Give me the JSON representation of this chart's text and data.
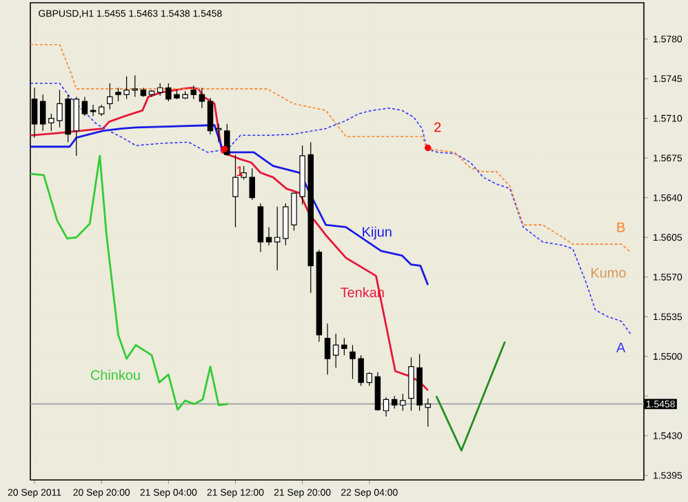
{
  "chart_data": {
    "type": "candlestick",
    "title": "GBPUSD,H1  1.5455 1.5463 1.5438 1.5458",
    "xlim": [
      "2011-09-20T11:30",
      "2011-09-23T12:48"
    ],
    "ylim": [
      1.5391,
      1.5812
    ],
    "xticks": [
      {
        "value": "2011-09-20T12:00",
        "label": "20 Sep 2011"
      },
      {
        "value": "2011-09-20T20:00",
        "label": "20 Sep 20:00"
      },
      {
        "value": "2011-09-21T04:00",
        "label": "21 Sep 04:00"
      },
      {
        "value": "2011-09-21T12:00",
        "label": "21 Sep 12:00"
      },
      {
        "value": "2011-09-21T20:00",
        "label": "21 Sep 20:00"
      },
      {
        "value": "2011-09-22T04:00",
        "label": "22 Sep 04:00"
      }
    ],
    "yticks": [
      {
        "value": 1.578,
        "label": "1.5780"
      },
      {
        "value": 1.5745,
        "label": "1.5745"
      },
      {
        "value": 1.571,
        "label": "1.5710"
      },
      {
        "value": 1.5675,
        "label": "1.5675"
      },
      {
        "value": 1.564,
        "label": "1.5640"
      },
      {
        "value": 1.5605,
        "label": "1.5605"
      },
      {
        "value": 1.557,
        "label": "1.5570"
      },
      {
        "value": 1.5535,
        "label": "1.5535"
      },
      {
        "value": 1.55,
        "label": "1.5500"
      },
      {
        "value": 1.5465,
        "label": null
      },
      {
        "value": 1.543,
        "label": "1.5430"
      },
      {
        "value": 1.5395,
        "label": "1.5395"
      }
    ],
    "grid": true,
    "ref_lines": [
      {
        "axis": "y",
        "value": 1.5458,
        "label": "1.5458",
        "color": "#a8a8a8"
      }
    ],
    "series": [
      {
        "color": "#000000",
        "x": [
          "2011-09-20T12:00",
          "2011-09-20T13:00",
          "2011-09-20T14:00",
          "2011-09-20T15:00",
          "2011-09-20T16:00",
          "2011-09-20T17:00",
          "2011-09-20T18:00",
          "2011-09-20T19:00",
          "2011-09-20T20:00",
          "2011-09-20T21:00",
          "2011-09-20T22:00",
          "2011-09-20T23:00",
          "2011-09-21T00:00",
          "2011-09-21T01:00",
          "2011-09-21T02:00",
          "2011-09-21T03:00",
          "2011-09-21T04:00",
          "2011-09-21T05:00",
          "2011-09-21T06:00",
          "2011-09-21T07:00",
          "2011-09-21T08:00",
          "2011-09-21T09:00",
          "2011-09-21T10:00",
          "2011-09-21T11:00",
          "2011-09-21T12:00",
          "2011-09-21T13:00",
          "2011-09-21T14:00",
          "2011-09-21T15:00",
          "2011-09-21T16:00",
          "2011-09-21T17:00",
          "2011-09-21T18:00",
          "2011-09-21T19:00",
          "2011-09-21T20:00",
          "2011-09-21T21:00",
          "2011-09-21T22:00",
          "2011-09-21T23:00",
          "2011-09-22T00:00",
          "2011-09-22T01:00",
          "2011-09-22T02:00",
          "2011-09-22T03:00",
          "2011-09-22T04:00",
          "2011-09-22T05:00",
          "2011-09-22T06:00",
          "2011-09-22T07:00",
          "2011-09-22T08:00",
          "2011-09-22T09:00",
          "2011-09-22T10:00",
          "2011-09-22T11:00"
        ],
        "ohlc": [
          [
            1.5727,
            1.5737,
            1.5693,
            1.5705
          ],
          [
            1.5725,
            1.5731,
            1.5699,
            1.5705
          ],
          [
            1.5706,
            1.5714,
            1.5699,
            1.571
          ],
          [
            1.5708,
            1.5735,
            1.5702,
            1.5723
          ],
          [
            1.5727,
            1.5731,
            1.5689,
            1.5696
          ],
          [
            1.5699,
            1.5729,
            1.5677,
            1.5727
          ],
          [
            1.5725,
            1.5729,
            1.5712,
            1.5714
          ],
          [
            1.5717,
            1.5722,
            1.5712,
            1.5716
          ],
          [
            1.5714,
            1.5722,
            1.5712,
            1.572
          ],
          [
            1.5723,
            1.5741,
            1.5718,
            1.5729
          ],
          [
            1.5733,
            1.5737,
            1.5725,
            1.5731
          ],
          [
            1.5731,
            1.5747,
            1.5727,
            1.5735
          ],
          [
            1.5735,
            1.5748,
            1.5729,
            1.5736
          ],
          [
            1.5735,
            1.5737,
            1.5729,
            1.573
          ],
          [
            1.5731,
            1.5735,
            1.5729,
            1.5734
          ],
          [
            1.5733,
            1.5741,
            1.573,
            1.5737
          ],
          [
            1.5737,
            1.5741,
            1.5725,
            1.5727
          ],
          [
            1.5731,
            1.5735,
            1.5727,
            1.5728
          ],
          [
            1.5728,
            1.5734,
            1.5727,
            1.5731
          ],
          [
            1.5735,
            1.5739,
            1.5727,
            1.5731
          ],
          [
            1.5731,
            1.5737,
            1.5719,
            1.5725
          ],
          [
            1.5725,
            1.5728,
            1.5696,
            1.5699
          ],
          [
            1.57,
            1.5705,
            1.5689,
            1.5701
          ],
          [
            1.5699,
            1.5705,
            1.5677,
            1.5678
          ],
          [
            1.5641,
            1.5678,
            1.5614,
            1.5658
          ],
          [
            1.5658,
            1.5668,
            1.5656,
            1.5662
          ],
          [
            1.5658,
            1.5666,
            1.5638,
            1.564
          ],
          [
            1.5632,
            1.5635,
            1.5592,
            1.5601
          ],
          [
            1.5605,
            1.5614,
            1.5598,
            1.5601
          ],
          [
            1.5601,
            1.5632,
            1.5576,
            1.5605
          ],
          [
            1.5604,
            1.5635,
            1.5598,
            1.5632
          ],
          [
            1.5616,
            1.5644,
            1.5611,
            1.5644
          ],
          [
            1.5641,
            1.5686,
            1.5634,
            1.5677
          ],
          [
            1.5678,
            1.5689,
            1.5556,
            1.558
          ],
          [
            1.5592,
            1.5594,
            1.5513,
            1.5519
          ],
          [
            1.5516,
            1.5529,
            1.5484,
            1.5498
          ],
          [
            1.5501,
            1.552,
            1.549,
            1.551
          ],
          [
            1.551,
            1.5516,
            1.5501,
            1.5507
          ],
          [
            1.5504,
            1.551,
            1.548,
            1.5498
          ],
          [
            1.5498,
            1.5501,
            1.5474,
            1.5477
          ],
          [
            1.5477,
            1.5486,
            1.5474,
            1.5485
          ],
          [
            1.5482,
            1.5486,
            1.5452,
            1.5453
          ],
          [
            1.5452,
            1.5464,
            1.5447,
            1.5462
          ],
          [
            1.5462,
            1.5465,
            1.5454,
            1.5457
          ],
          [
            1.5457,
            1.5467,
            1.5452,
            1.5461
          ],
          [
            1.5463,
            1.5499,
            1.5452,
            1.5491
          ],
          [
            1.549,
            1.5502,
            1.5452,
            1.5457
          ],
          [
            1.5455,
            1.5463,
            1.5438,
            1.5458
          ]
        ]
      },
      {
        "type": "line",
        "name": "Tenkan",
        "color": "#e8173a",
        "x": [
          "2011-09-20T11:30",
          "2011-09-20T14:42",
          "2011-09-20T20:12",
          "2011-09-20T20:54",
          "2011-09-20T22:48",
          "2011-09-21T00:54",
          "2011-09-21T01:36",
          "2011-09-21T03:12",
          "2011-09-21T05:36",
          "2011-09-21T06:42",
          "2011-09-21T07:36",
          "2011-09-21T08:12",
          "2011-09-21T09:30",
          "2011-09-21T10:24",
          "2011-09-21T12:36",
          "2011-09-21T13:54",
          "2011-09-21T15:00",
          "2011-09-21T16:30",
          "2011-09-21T18:06",
          "2011-09-21T19:42",
          "2011-09-21T20:48",
          "2011-09-21T22:48",
          "2011-09-22T01:12",
          "2011-09-22T04:48",
          "2011-09-22T06:12",
          "2011-09-22T07:06",
          "2011-09-22T09:00",
          "2011-09-22T10:06",
          "2011-09-22T11:00"
        ],
        "values": [
          1.5695,
          1.5697,
          1.5701,
          1.5707,
          1.5712,
          1.5717,
          1.5729,
          1.5733,
          1.5736,
          1.5737,
          1.5736,
          1.5729,
          1.5723,
          1.568,
          1.5674,
          1.5671,
          1.5662,
          1.5658,
          1.5648,
          1.5644,
          1.5626,
          1.5607,
          1.5587,
          1.5571,
          1.552,
          1.5487,
          1.5482,
          1.5477,
          1.547
        ]
      },
      {
        "type": "line",
        "name": "Kijun",
        "color": "#1a1ae6",
        "x": [
          "2011-09-20T11:30",
          "2011-09-20T16:12",
          "2011-09-20T17:00",
          "2011-09-20T20:12",
          "2011-09-20T22:30",
          "2011-09-21T00:06",
          "2011-09-21T09:30",
          "2011-09-21T10:18",
          "2011-09-21T10:42",
          "2011-09-21T14:12",
          "2011-09-21T16:30",
          "2011-09-21T19:42",
          "2011-09-21T21:18",
          "2011-09-21T22:48",
          "2011-09-22T01:12",
          "2011-09-22T05:24",
          "2011-09-22T07:54",
          "2011-09-22T09:00",
          "2011-09-22T10:06",
          "2011-09-22T11:00"
        ],
        "values": [
          1.5685,
          1.5685,
          1.5693,
          1.5699,
          1.5701,
          1.5702,
          1.5704,
          1.5686,
          1.568,
          1.568,
          1.5668,
          1.5662,
          1.5638,
          1.5616,
          1.5614,
          1.5593,
          1.5589,
          1.5581,
          1.558,
          1.5563
        ]
      },
      {
        "type": "line",
        "name": "Chinkou",
        "color": "#33cc33",
        "x": [
          "2011-09-20T11:30",
          "2011-09-20T13:06",
          "2011-09-20T14:42",
          "2011-09-20T15:54",
          "2011-09-20T17:00",
          "2011-09-20T18:36",
          "2011-09-20T19:48",
          "2011-09-20T20:36",
          "2011-09-20T22:00",
          "2011-09-20T23:00",
          "2011-09-21T00:06",
          "2011-09-21T02:00",
          "2011-09-21T02:54",
          "2011-09-21T04:00",
          "2011-09-21T05:06",
          "2011-09-21T06:00",
          "2011-09-21T07:06",
          "2011-09-21T08:06",
          "2011-09-21T09:00",
          "2011-09-21T10:00",
          "2011-09-21T11:06"
        ],
        "values": [
          1.5661,
          1.566,
          1.562,
          1.5604,
          1.5605,
          1.5617,
          1.5677,
          1.5607,
          1.5519,
          1.5498,
          1.551,
          1.5501,
          1.5477,
          1.5484,
          1.5453,
          1.5461,
          1.5458,
          1.5462,
          1.5491,
          1.5457,
          1.5458
        ]
      },
      {
        "type": "line",
        "color": "#1f8f1f",
        "x": [
          "2011-09-22T12:00",
          "2011-09-22T15:00",
          "2011-09-22T20:12"
        ],
        "values": [
          1.5465,
          1.5417,
          1.5513
        ]
      },
      {
        "type": "line",
        "name": "A",
        "color": "#3333ff",
        "line_style": "dashed",
        "x": [
          "2011-09-20T11:30",
          "2011-09-20T15:00",
          "2011-09-20T16:12",
          "2011-09-20T17:00",
          "2011-09-20T19:24",
          "2011-09-20T20:54",
          "2011-09-20T22:30",
          "2011-09-21T00:06",
          "2011-09-21T03:12",
          "2011-09-21T06:24",
          "2011-09-21T08:42",
          "2011-09-21T11:06",
          "2011-09-21T12:36",
          "2011-09-21T15:48",
          "2011-09-21T18:54",
          "2011-09-21T22:48",
          "2011-09-22T01:12",
          "2011-09-22T02:42",
          "2011-09-22T04:18",
          "2011-09-22T06:24",
          "2011-09-22T07:54",
          "2011-09-22T09:18",
          "2011-09-22T10:18",
          "2011-09-22T10:54",
          "2011-09-22T12:12",
          "2011-09-22T14:12",
          "2011-09-22T16:06",
          "2011-09-22T17:36",
          "2011-09-22T19:12",
          "2011-09-22T20:48",
          "2011-09-22T22:24",
          "2011-09-23T00:42",
          "2011-09-23T03:06",
          "2011-09-23T04:18",
          "2011-09-23T05:54",
          "2011-09-23T07:00",
          "2011-09-23T08:30",
          "2011-09-23T10:06",
          "2011-09-23T11:12"
        ],
        "values": [
          1.5741,
          1.5741,
          1.5729,
          1.5723,
          1.5705,
          1.5699,
          1.5693,
          1.5686,
          1.5688,
          1.5689,
          1.568,
          1.5683,
          1.5695,
          1.5695,
          1.5696,
          1.5701,
          1.5708,
          1.5714,
          1.5717,
          1.5719,
          1.5717,
          1.5711,
          1.5701,
          1.5683,
          1.568,
          1.5679,
          1.5671,
          1.5658,
          1.5652,
          1.5648,
          1.5614,
          1.5601,
          1.5598,
          1.5595,
          1.5565,
          1.5541,
          1.5535,
          1.5531,
          1.552
        ]
      },
      {
        "type": "line",
        "name": "B",
        "color": "#ff7f27",
        "line_style": "dashed",
        "x": [
          "2011-09-20T11:30",
          "2011-09-20T15:00",
          "2011-09-20T16:12",
          "2011-09-20T17:00",
          "2011-09-20T19:24",
          "2011-09-20T20:54",
          "2011-09-20T22:30",
          "2011-09-21T00:06",
          "2011-09-21T03:12",
          "2011-09-21T06:24",
          "2011-09-21T08:42",
          "2011-09-21T11:06",
          "2011-09-21T12:36",
          "2011-09-21T15:48",
          "2011-09-21T18:54",
          "2011-09-21T22:48",
          "2011-09-22T01:12",
          "2011-09-22T02:42",
          "2011-09-22T04:18",
          "2011-09-22T06:24",
          "2011-09-22T07:54",
          "2011-09-22T09:18",
          "2011-09-22T10:18",
          "2011-09-22T10:54",
          "2011-09-22T12:12",
          "2011-09-22T14:12",
          "2011-09-22T16:06",
          "2011-09-22T17:36",
          "2011-09-22T19:12",
          "2011-09-22T20:48",
          "2011-09-22T22:24",
          "2011-09-23T00:42",
          "2011-09-23T03:06",
          "2011-09-23T04:18",
          "2011-09-23T05:54",
          "2011-09-23T07:00",
          "2011-09-23T08:30",
          "2011-09-23T10:06",
          "2011-09-23T11:12"
        ],
        "values": [
          1.5775,
          1.5775,
          1.5753,
          1.5736,
          1.5736,
          1.5736,
          1.5736,
          1.5736,
          1.5736,
          1.5736,
          1.5736,
          1.5736,
          1.5736,
          1.5736,
          1.5723,
          1.5717,
          1.5694,
          1.5694,
          1.5694,
          1.5694,
          1.5694,
          1.5694,
          1.5694,
          1.5683,
          1.5682,
          1.568,
          1.5666,
          1.5663,
          1.5663,
          1.565,
          1.5616,
          1.5616,
          1.5605,
          1.5599,
          1.5599,
          1.5599,
          1.5599,
          1.5599,
          1.5592
        ]
      },
      {
        "type": "scatter",
        "color": "#ff0000",
        "marker": "circle",
        "x": [
          "2011-09-21T10:42",
          "2011-09-22T11:00"
        ],
        "values": [
          1.5683,
          1.5684
        ]
      }
    ],
    "annotations": [
      {
        "text": "1",
        "x": "2011-09-21T10:42",
        "y": 1.5683
      },
      {
        "text": "2",
        "x": "2011-09-22T11:00",
        "y": 1.5684
      },
      "Kumo"
    ]
  }
}
